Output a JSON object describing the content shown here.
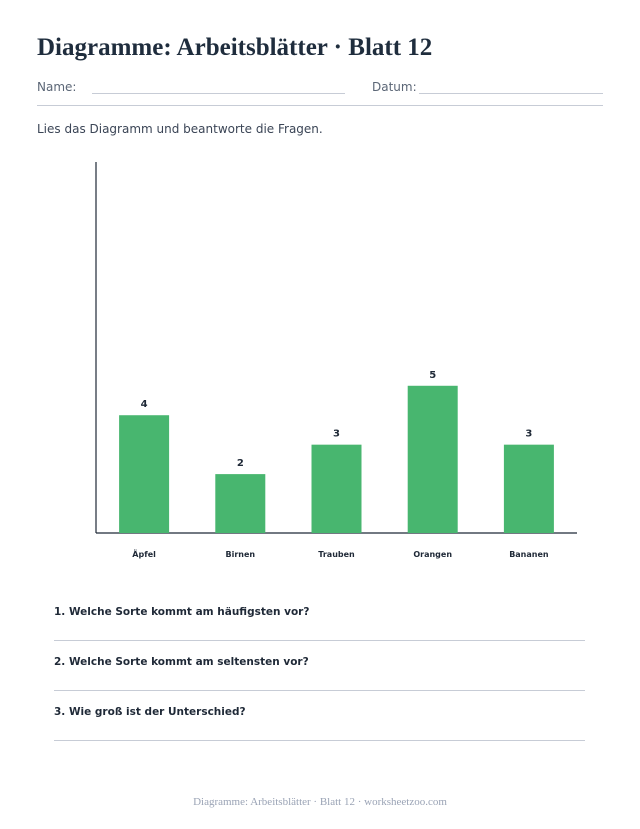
{
  "page": {
    "title": "Diagramme: Arbeitsblätter · Blatt 12",
    "name_label": "Name:",
    "date_label": "Datum:",
    "instruction": "Lies das Diagramm und beantworte die Fragen.",
    "footer": "Diagramme: Arbeitsblätter · Blatt 12 · worksheetzoo.com"
  },
  "colors": {
    "bar": "#48b66f",
    "axis": "#1f2937",
    "label": "#1f2937"
  },
  "chart_data": {
    "type": "bar",
    "categories": [
      "Äpfel",
      "Birnen",
      "Trauben",
      "Orangen",
      "Bananen"
    ],
    "values": [
      4,
      2,
      3,
      5,
      3
    ],
    "title": "",
    "xlabel": "",
    "ylabel": "",
    "ylim": [
      0,
      12.6
    ],
    "grid": false,
    "data_labels": true
  },
  "questions": [
    {
      "text": "1. Welche Sorte kommt am häufigsten vor?"
    },
    {
      "text": "2. Welche Sorte kommt am seltensten vor?"
    },
    {
      "text": "3. Wie groß ist der Unterschied?"
    }
  ]
}
